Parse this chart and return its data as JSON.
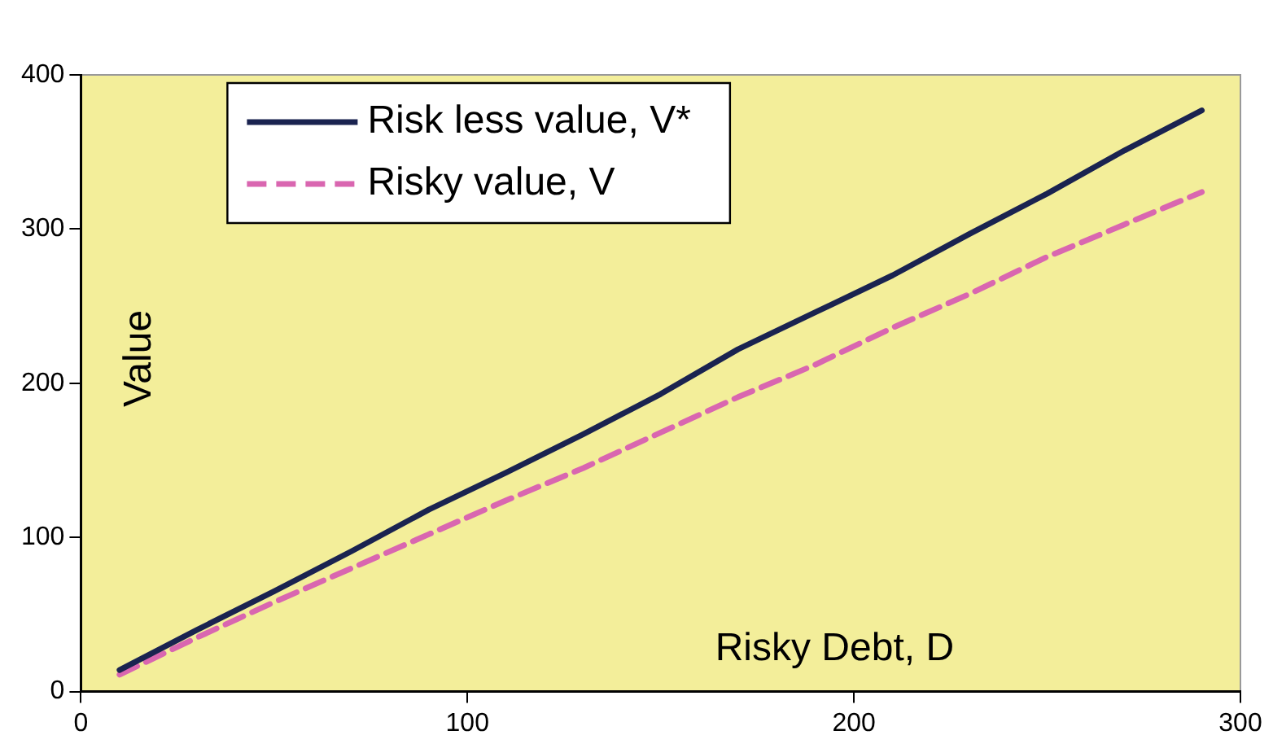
{
  "chart_data": {
    "type": "line",
    "xlabel": "Risky Debt, D",
    "ylabel": "Value",
    "x": [
      10,
      30,
      50,
      70,
      90,
      110,
      130,
      150,
      170,
      190,
      210,
      230,
      250,
      270,
      290
    ],
    "series": [
      {
        "name": "Risk less value, V*",
        "color": "#1a2350",
        "line_style": "solid",
        "values": [
          14,
          40,
          65,
          91,
          118,
          142,
          167,
          193,
          222,
          246,
          270,
          297,
          323,
          351,
          377
        ]
      },
      {
        "name": "Risky value, V",
        "color": "#d966b0",
        "line_style": "dashed",
        "values": [
          11,
          35,
          58,
          80,
          102,
          124,
          145,
          168,
          191,
          212,
          236,
          258,
          282,
          303,
          324
        ]
      }
    ],
    "xlim": [
      0,
      300
    ],
    "xticks": [
      0,
      100,
      200,
      300
    ],
    "ylim": [
      0,
      400
    ],
    "yticks": [
      0,
      100,
      200,
      300,
      400
    ],
    "grid": false,
    "legend": "top left",
    "marker": "none"
  }
}
